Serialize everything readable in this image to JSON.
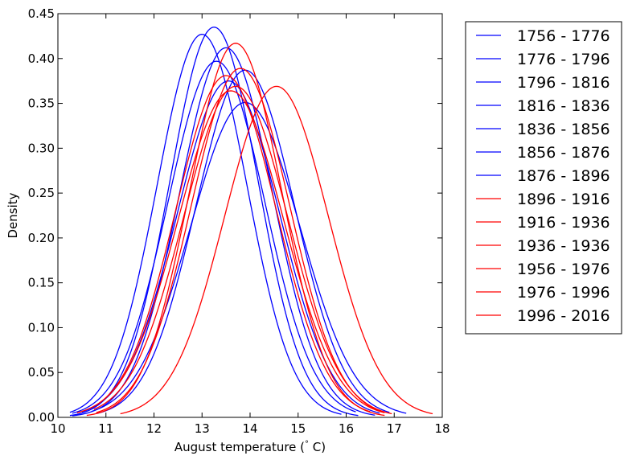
{
  "chart_data": {
    "type": "line",
    "title": "",
    "xlabel": "August temperature ($^\\circ$ C)",
    "ylabel": "Density",
    "xlim": [
      10,
      18
    ],
    "ylim": [
      0,
      0.45
    ],
    "xticks": [
      "10",
      "11",
      "12",
      "13",
      "14",
      "15",
      "16",
      "17",
      "18"
    ],
    "yticks": [
      "0.00",
      "0.05",
      "0.10",
      "0.15",
      "0.20",
      "0.25",
      "0.30",
      "0.35",
      "0.40",
      "0.45"
    ],
    "grid": false,
    "legend_position": "outside-right",
    "series": [
      {
        "name": "1756 - 1776",
        "color": "#0000ff",
        "mean": 13.25,
        "peak": 0.435,
        "xmin": 10.25,
        "xmax": 16.25
      },
      {
        "name": "1776 - 1796",
        "color": "#0000ff",
        "mean": 13.0,
        "peak": 0.427,
        "xmin": 10.25,
        "xmax": 15.9
      },
      {
        "name": "1796 - 1816",
        "color": "#0000ff",
        "mean": 13.5,
        "peak": 0.412,
        "xmin": 10.3,
        "xmax": 16.6
      },
      {
        "name": "1816 - 1836",
        "color": "#0000ff",
        "mean": 13.3,
        "peak": 0.397,
        "xmin": 10.3,
        "xmax": 16.2
      },
      {
        "name": "1836 - 1856",
        "color": "#0000ff",
        "mean": 13.9,
        "peak": 0.387,
        "xmin": 10.8,
        "xmax": 16.9
      },
      {
        "name": "1856 - 1876",
        "color": "#0000ff",
        "mean": 13.55,
        "peak": 0.375,
        "xmin": 10.5,
        "xmax": 16.7
      },
      {
        "name": "1876 - 1896",
        "color": "#0000ff",
        "mean": 13.9,
        "peak": 0.351,
        "xmin": 10.7,
        "xmax": 17.25
      },
      {
        "name": "1896 - 1916",
        "color": "#ff0000",
        "mean": 13.7,
        "peak": 0.417,
        "xmin": 10.6,
        "xmax": 16.8
      },
      {
        "name": "1916 - 1936",
        "color": "#ff0000",
        "mean": 13.5,
        "peak": 0.381,
        "xmin": 10.8,
        "xmax": 16.5
      },
      {
        "name": "1936 - 1936",
        "color": "#ff0000",
        "mean": 13.8,
        "peak": 0.389,
        "xmin": 10.8,
        "xmax": 16.8
      },
      {
        "name": "1956 - 1976",
        "color": "#ff0000",
        "mean": 13.6,
        "peak": 0.364,
        "xmin": 10.4,
        "xmax": 16.8
      },
      {
        "name": "1976 - 1996",
        "color": "#ff0000",
        "mean": 13.7,
        "peak": 0.369,
        "xmin": 10.75,
        "xmax": 16.95
      },
      {
        "name": "1996 - 2016",
        "color": "#ff0000",
        "mean": 14.55,
        "peak": 0.369,
        "xmin": 11.3,
        "xmax": 17.8
      }
    ]
  }
}
